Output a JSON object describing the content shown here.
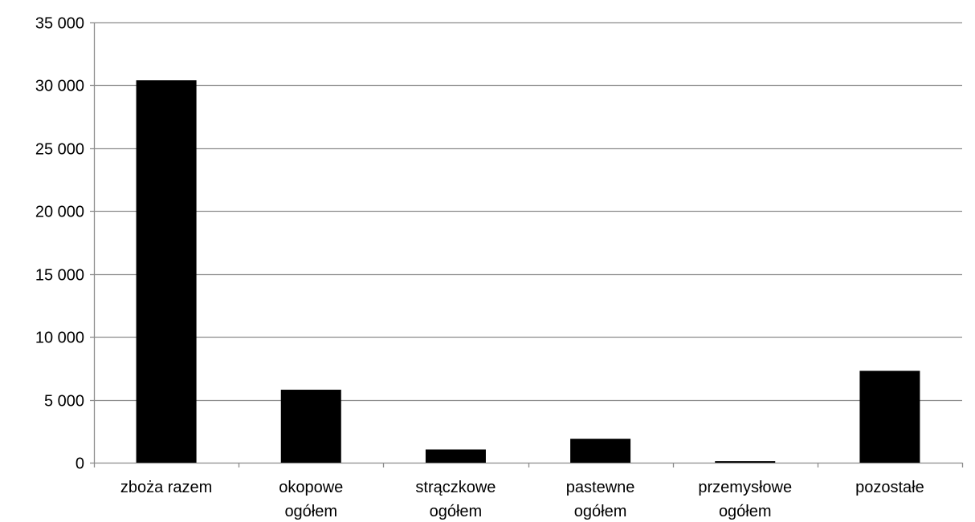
{
  "chart_data": {
    "type": "bar",
    "title": "",
    "xlabel": "",
    "ylabel": "",
    "categories": [
      [
        "zboża razem"
      ],
      [
        "okopowe",
        "ogółem"
      ],
      [
        "strączkowe",
        "ogółem"
      ],
      [
        "pastewne",
        "ogółem"
      ],
      [
        "przemysłowe",
        "ogółem"
      ],
      [
        "pozostałe"
      ]
    ],
    "values": [
      30400,
      5800,
      1050,
      1900,
      120,
      7300
    ],
    "ylim": [
      0,
      35000
    ],
    "yticks": [
      0,
      5000,
      10000,
      15000,
      20000,
      25000,
      30000,
      35000
    ],
    "ytick_labels": [
      "0",
      "5 000",
      "10 000",
      "15 000",
      "20 000",
      "25 000",
      "30 000",
      "35 000"
    ],
    "grid": true,
    "legend": "none",
    "colors": {
      "bar": "#000000",
      "grid": "#8c8c8c",
      "axis": "#8c8c8c",
      "text": "#000000"
    }
  }
}
